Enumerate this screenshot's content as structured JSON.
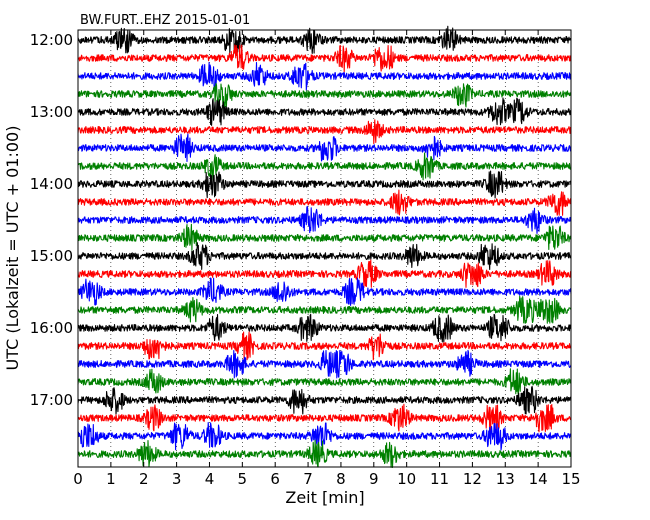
{
  "chart_data": {
    "type": "line",
    "title": "BW.FURT..EHZ 2015-01-01",
    "xlabel": "Zeit  [min]",
    "ylabel": "UTC (Lokalzeit = UTC + 01:00)",
    "xlim": [
      0,
      15
    ],
    "x_ticks": [
      "0",
      "1",
      "2",
      "3",
      "4",
      "5",
      "6",
      "7",
      "8",
      "9",
      "10",
      "11",
      "12",
      "13",
      "14",
      "15"
    ],
    "y_tick_labels": [
      "12:00",
      "13:00",
      "14:00",
      "15:00",
      "16:00",
      "17:00"
    ],
    "grid": true,
    "series_colors": [
      "#000000",
      "#ff0000",
      "#0000ff",
      "#008000"
    ],
    "rows": [
      {
        "start": "12:00",
        "events": [
          [
            1.4,
            1.5
          ],
          [
            4.7,
            1.8
          ],
          [
            7.1,
            1.2
          ],
          [
            11.3,
            1.1
          ]
        ]
      },
      {
        "start": "12:15",
        "events": [
          [
            4.9,
            1.3
          ],
          [
            9.3,
            2.6
          ],
          [
            8.1,
            1.2
          ]
        ]
      },
      {
        "start": "12:30",
        "events": [
          [
            4.0,
            2.0
          ],
          [
            6.8,
            2.2
          ],
          [
            5.5,
            1.1
          ]
        ]
      },
      {
        "start": "12:45",
        "events": [
          [
            4.4,
            1.5
          ],
          [
            11.7,
            1.2
          ]
        ]
      },
      {
        "start": "13:00",
        "events": [
          [
            4.2,
            1.9
          ],
          [
            12.8,
            1.5
          ],
          [
            13.4,
            1.2
          ]
        ]
      },
      {
        "start": "13:15",
        "events": [
          [
            9.0,
            1.0
          ]
        ]
      },
      {
        "start": "13:30",
        "events": [
          [
            3.2,
            1.6
          ],
          [
            7.6,
            2.0
          ],
          [
            10.8,
            1.1
          ]
        ]
      },
      {
        "start": "13:45",
        "events": [
          [
            10.6,
            1.4
          ],
          [
            4.1,
            1.0
          ]
        ]
      },
      {
        "start": "14:00",
        "events": [
          [
            4.1,
            2.2
          ],
          [
            12.7,
            1.8
          ]
        ]
      },
      {
        "start": "14:15",
        "events": [
          [
            9.8,
            1.4
          ],
          [
            14.6,
            1.6
          ]
        ]
      },
      {
        "start": "14:30",
        "events": [
          [
            7.1,
            2.0
          ],
          [
            13.9,
            1.1
          ]
        ]
      },
      {
        "start": "14:45",
        "events": [
          [
            3.4,
            1.1
          ],
          [
            14.5,
            1.5
          ]
        ]
      },
      {
        "start": "15:00",
        "events": [
          [
            3.7,
            1.7
          ],
          [
            12.5,
            2.4
          ],
          [
            10.2,
            1.0
          ]
        ]
      },
      {
        "start": "15:15",
        "events": [
          [
            8.8,
            2.0
          ],
          [
            12.0,
            2.8
          ],
          [
            14.3,
            1.5
          ]
        ]
      },
      {
        "start": "15:30",
        "events": [
          [
            0.4,
            1.7
          ],
          [
            4.1,
            1.6
          ],
          [
            8.4,
            2.1
          ],
          [
            6.2,
            1.1
          ]
        ]
      },
      {
        "start": "15:45",
        "events": [
          [
            14.3,
            3.2
          ],
          [
            13.6,
            2.4
          ],
          [
            3.5,
            1.0
          ]
        ]
      },
      {
        "start": "16:00",
        "events": [
          [
            7.0,
            2.0
          ],
          [
            11.1,
            2.4
          ],
          [
            12.8,
            2.8
          ],
          [
            4.2,
            1.2
          ]
        ]
      },
      {
        "start": "16:15",
        "events": [
          [
            2.3,
            2.3
          ],
          [
            5.1,
            1.3
          ],
          [
            9.1,
            1.3
          ]
        ]
      },
      {
        "start": "16:30",
        "events": [
          [
            4.8,
            1.7
          ],
          [
            7.7,
            3.0
          ],
          [
            8.0,
            2.2
          ],
          [
            11.8,
            1.2
          ]
        ]
      },
      {
        "start": "16:45",
        "events": [
          [
            13.3,
            1.5
          ],
          [
            2.3,
            1.1
          ]
        ]
      },
      {
        "start": "17:00",
        "events": [
          [
            1.1,
            1.8
          ],
          [
            6.7,
            1.6
          ],
          [
            13.7,
            2.2
          ]
        ]
      },
      {
        "start": "17:15",
        "events": [
          [
            9.8,
            1.8
          ],
          [
            12.6,
            1.6
          ],
          [
            14.2,
            2.6
          ],
          [
            2.3,
            1.1
          ]
        ]
      },
      {
        "start": "17:30",
        "events": [
          [
            0.3,
            2.0
          ],
          [
            3.1,
            1.8
          ],
          [
            7.4,
            1.9
          ],
          [
            12.7,
            2.6
          ],
          [
            4.1,
            1.4
          ]
        ]
      },
      {
        "start": "17:45",
        "events": [
          [
            7.3,
            1.4
          ],
          [
            2.1,
            1.3
          ],
          [
            9.5,
            1.1
          ]
        ]
      }
    ]
  }
}
